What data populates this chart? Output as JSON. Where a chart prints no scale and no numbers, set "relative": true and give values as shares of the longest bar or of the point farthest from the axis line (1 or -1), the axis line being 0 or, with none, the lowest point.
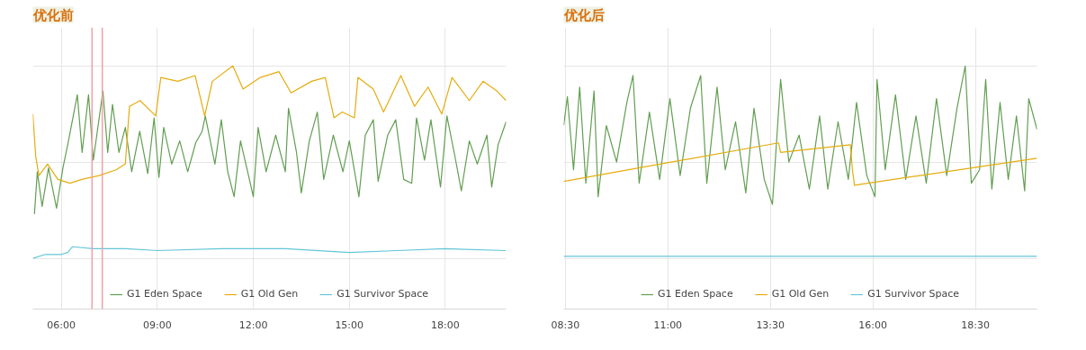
{
  "chart_data": [
    {
      "type": "line",
      "title": "优化前",
      "relative": true,
      "xlim": [
        5.11,
        19.9
      ],
      "xticks": [
        {
          "value": 6,
          "label": "06:00"
        },
        {
          "value": 9,
          "label": "09:00"
        },
        {
          "value": 12,
          "label": "12:00"
        },
        {
          "value": 15,
          "label": "15:00"
        },
        {
          "value": 18,
          "label": "18:00"
        }
      ],
      "grid": true,
      "legend": "bottom",
      "ref_lines": [
        {
          "axis": "x",
          "value": 6.96,
          "color": "#f2a0a8"
        },
        {
          "axis": "x",
          "value": 7.28,
          "color": "#f2a0a8"
        }
      ],
      "series": [
        {
          "name": "G1 Eden Space",
          "color": "#629e51",
          "x": [
            5.16,
            5.25,
            5.4,
            5.6,
            5.85,
            6.05,
            6.2,
            6.5,
            6.65,
            6.85,
            7.0,
            7.3,
            7.45,
            7.6,
            7.8,
            8.0,
            8.2,
            8.45,
            8.7,
            8.9,
            9.05,
            9.2,
            9.45,
            9.7,
            9.95,
            10.2,
            10.4,
            10.5,
            10.8,
            11.0,
            11.2,
            11.4,
            11.6,
            11.85,
            12.0,
            12.15,
            12.4,
            12.7,
            13.0,
            13.1,
            13.35,
            13.5,
            13.75,
            14.0,
            14.2,
            14.5,
            14.8,
            15.0,
            15.3,
            15.5,
            15.75,
            15.9,
            16.2,
            16.45,
            16.7,
            16.95,
            17.1,
            17.35,
            17.55,
            17.85,
            18.05,
            18.3,
            18.5,
            18.75,
            19.0,
            19.3,
            19.45,
            19.65,
            19.9
          ],
          "values": [
            0.23,
            0.45,
            0.27,
            0.47,
            0.26,
            0.47,
            0.59,
            0.85,
            0.55,
            0.85,
            0.51,
            0.87,
            0.55,
            0.8,
            0.55,
            0.68,
            0.45,
            0.66,
            0.44,
            0.73,
            0.42,
            0.68,
            0.49,
            0.61,
            0.45,
            0.6,
            0.66,
            0.74,
            0.49,
            0.72,
            0.45,
            0.32,
            0.61,
            0.43,
            0.32,
            0.68,
            0.45,
            0.64,
            0.45,
            0.78,
            0.55,
            0.34,
            0.61,
            0.76,
            0.41,
            0.64,
            0.45,
            0.61,
            0.32,
            0.64,
            0.72,
            0.4,
            0.64,
            0.72,
            0.41,
            0.39,
            0.73,
            0.51,
            0.72,
            0.37,
            0.74,
            0.53,
            0.35,
            0.61,
            0.49,
            0.64,
            0.37,
            0.59,
            0.71
          ]
        },
        {
          "name": "G1 Old Gen",
          "color": "#e5ac0e",
          "x": [
            5.11,
            5.2,
            5.3,
            5.57,
            5.89,
            6.27,
            6.64,
            7.18,
            7.71,
            8.0,
            8.13,
            8.46,
            8.95,
            9.11,
            9.64,
            10.18,
            10.48,
            10.72,
            11.36,
            11.68,
            12.22,
            12.8,
            13.18,
            13.82,
            14.25,
            14.52,
            14.78,
            15.16,
            15.27,
            15.75,
            16.07,
            16.61,
            17.04,
            17.46,
            17.89,
            18.21,
            18.75,
            19.18,
            19.61,
            19.9
          ],
          "values": [
            0.75,
            0.53,
            0.43,
            0.49,
            0.41,
            0.39,
            0.41,
            0.43,
            0.46,
            0.49,
            0.79,
            0.82,
            0.74,
            0.94,
            0.92,
            0.95,
            0.74,
            0.92,
            1.0,
            0.88,
            0.94,
            0.97,
            0.86,
            0.92,
            0.94,
            0.73,
            0.76,
            0.73,
            0.94,
            0.88,
            0.76,
            0.95,
            0.79,
            0.89,
            0.75,
            0.94,
            0.82,
            0.92,
            0.87,
            0.82
          ]
        },
        {
          "name": "G1 Survivor Space",
          "color": "#64c6d8",
          "x": [
            5.11,
            5.5,
            6.0,
            6.2,
            6.35,
            7.0,
            8.0,
            9.0,
            11.0,
            13.0,
            15.0,
            16.5,
            18.0,
            19.9
          ],
          "values": [
            0.0,
            0.02,
            0.02,
            0.03,
            0.06,
            0.05,
            0.05,
            0.04,
            0.05,
            0.05,
            0.03,
            0.04,
            0.05,
            0.04
          ]
        }
      ]
    },
    {
      "type": "line",
      "title": "优化后",
      "relative": true,
      "xlim": [
        8.46,
        20.0
      ],
      "xticks": [
        {
          "value": 8.5,
          "label": "08:30"
        },
        {
          "value": 11,
          "label": "11:00"
        },
        {
          "value": 13.5,
          "label": "13:30"
        },
        {
          "value": 16,
          "label": "16:00"
        },
        {
          "value": 18.5,
          "label": "18:30"
        }
      ],
      "grid": true,
      "legend": "bottom",
      "series": [
        {
          "name": "G1 Eden Space",
          "color": "#629e51",
          "x": [
            8.46,
            8.55,
            8.7,
            8.85,
            9.0,
            9.2,
            9.3,
            9.5,
            9.75,
            10.0,
            10.15,
            10.3,
            10.55,
            10.8,
            11.05,
            11.3,
            11.55,
            11.8,
            11.95,
            12.2,
            12.4,
            12.65,
            12.9,
            13.1,
            13.35,
            13.55,
            13.75,
            13.95,
            14.2,
            14.45,
            14.7,
            14.9,
            15.15,
            15.4,
            15.6,
            15.85,
            16.05,
            16.1,
            16.3,
            16.55,
            16.8,
            17.05,
            17.3,
            17.55,
            17.8,
            18.05,
            18.25,
            18.4,
            18.6,
            18.75,
            18.9,
            19.1,
            19.3,
            19.5,
            19.7,
            19.8,
            20.0
          ],
          "values": [
            0.69,
            0.84,
            0.46,
            0.89,
            0.39,
            0.87,
            0.32,
            0.69,
            0.5,
            0.81,
            0.95,
            0.39,
            0.76,
            0.41,
            0.83,
            0.43,
            0.78,
            0.95,
            0.39,
            0.89,
            0.46,
            0.71,
            0.34,
            0.78,
            0.41,
            0.28,
            0.93,
            0.5,
            0.64,
            0.36,
            0.74,
            0.36,
            0.71,
            0.41,
            0.81,
            0.43,
            0.32,
            0.93,
            0.46,
            0.85,
            0.41,
            0.74,
            0.39,
            0.83,
            0.43,
            0.78,
            1.0,
            0.39,
            0.46,
            0.93,
            0.36,
            0.81,
            0.41,
            0.74,
            0.35,
            0.83,
            0.67
          ]
        },
        {
          "name": "G1 Old Gen",
          "color": "#e5ac0e",
          "x": [
            8.46,
            13.7,
            13.75,
            15.45,
            15.5,
            15.55,
            20.0
          ],
          "values": [
            0.4,
            0.6,
            0.55,
            0.59,
            0.46,
            0.38,
            0.52
          ]
        },
        {
          "name": "G1 Survivor Space",
          "color": "#64c6d8",
          "x": [
            8.46,
            9.0,
            12.0,
            16.0,
            20.0
          ],
          "values": [
            0.01,
            0.01,
            0.01,
            0.01,
            0.01
          ]
        }
      ]
    }
  ]
}
